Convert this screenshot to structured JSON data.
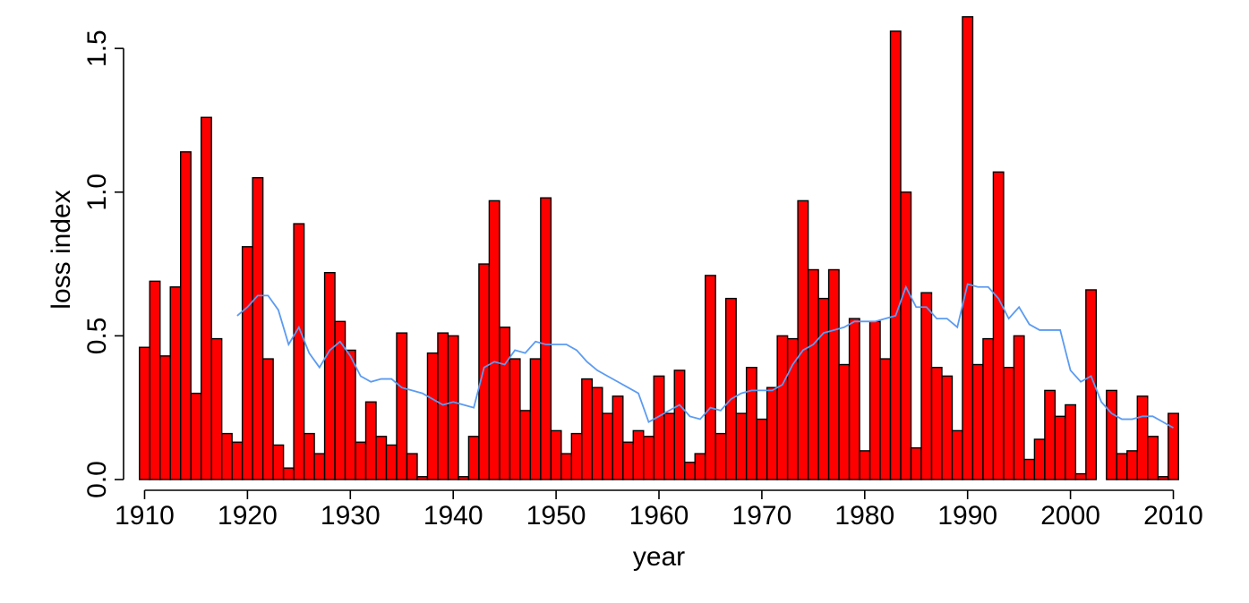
{
  "chart_data": {
    "type": "bar",
    "title": "",
    "xlabel": "year",
    "ylabel": "loss index",
    "xlim": [
      1909,
      2011
    ],
    "ylim": [
      0,
      1.6
    ],
    "x_ticks": [
      1910,
      1920,
      1930,
      1940,
      1950,
      1960,
      1970,
      1980,
      1990,
      2000,
      2010
    ],
    "y_ticks": [
      "0.0",
      "0.5",
      "1.0",
      "1.5"
    ],
    "grid": false,
    "colors": {
      "bars": "#ff0000",
      "bar_outline": "#000000",
      "line": "#5b9bf2"
    },
    "series": [
      {
        "type": "bar",
        "x": [
          1910,
          1911,
          1912,
          1913,
          1914,
          1915,
          1916,
          1917,
          1918,
          1919,
          1920,
          1921,
          1922,
          1923,
          1924,
          1925,
          1926,
          1927,
          1928,
          1929,
          1930,
          1931,
          1932,
          1933,
          1934,
          1935,
          1936,
          1937,
          1938,
          1939,
          1940,
          1941,
          1942,
          1943,
          1944,
          1945,
          1946,
          1947,
          1948,
          1949,
          1950,
          1951,
          1952,
          1953,
          1954,
          1955,
          1956,
          1957,
          1958,
          1959,
          1960,
          1961,
          1962,
          1963,
          1964,
          1965,
          1966,
          1967,
          1968,
          1969,
          1970,
          1971,
          1972,
          1973,
          1974,
          1975,
          1976,
          1977,
          1978,
          1979,
          1980,
          1981,
          1982,
          1983,
          1984,
          1985,
          1986,
          1987,
          1988,
          1989,
          1990,
          1991,
          1992,
          1993,
          1994,
          1995,
          1996,
          1997,
          1998,
          1999,
          2000,
          2001,
          2002,
          2003,
          2004,
          2005,
          2006,
          2007,
          2008,
          2009,
          2010
        ],
        "values": [
          0.46,
          0.69,
          0.43,
          0.67,
          1.14,
          0.3,
          1.26,
          0.49,
          0.16,
          0.13,
          0.81,
          1.05,
          0.42,
          0.12,
          0.04,
          0.89,
          0.16,
          0.09,
          0.72,
          0.55,
          0.45,
          0.13,
          0.27,
          0.15,
          0.12,
          0.51,
          0.09,
          0.01,
          0.44,
          0.51,
          0.5,
          0.01,
          0.15,
          0.75,
          0.97,
          0.53,
          0.42,
          0.24,
          0.42,
          0.98,
          0.17,
          0.09,
          0.16,
          0.35,
          0.32,
          0.23,
          0.29,
          0.13,
          0.17,
          0.15,
          0.36,
          0.23,
          0.38,
          0.06,
          0.09,
          0.71,
          0.16,
          0.63,
          0.23,
          0.39,
          0.21,
          0.32,
          0.5,
          0.49,
          0.97,
          0.73,
          0.63,
          0.73,
          0.4,
          0.56,
          0.1,
          0.55,
          0.42,
          1.56,
          1.0,
          0.11,
          0.65,
          0.39,
          0.36,
          0.17,
          1.61,
          0.4,
          0.49,
          1.07,
          0.39,
          0.5,
          0.07,
          0.14,
          0.31,
          0.22,
          0.26,
          0.02,
          0.66,
          0.0,
          0.31,
          0.09,
          0.1,
          0.29,
          0.15,
          0.01,
          0.23
        ]
      },
      {
        "type": "line",
        "x": [
          1919,
          1920,
          1921,
          1922,
          1923,
          1924,
          1925,
          1926,
          1927,
          1928,
          1929,
          1930,
          1931,
          1932,
          1933,
          1934,
          1935,
          1936,
          1937,
          1938,
          1939,
          1940,
          1941,
          1942,
          1943,
          1944,
          1945,
          1946,
          1947,
          1948,
          1949,
          1950,
          1951,
          1952,
          1953,
          1954,
          1955,
          1956,
          1957,
          1958,
          1959,
          1960,
          1961,
          1962,
          1963,
          1964,
          1965,
          1966,
          1967,
          1968,
          1969,
          1970,
          1971,
          1972,
          1973,
          1974,
          1975,
          1976,
          1977,
          1978,
          1979,
          1980,
          1981,
          1982,
          1983,
          1984,
          1985,
          1986,
          1987,
          1988,
          1989,
          1990,
          1991,
          1992,
          1993,
          1994,
          1995,
          1996,
          1997,
          1998,
          1999,
          2000,
          2001,
          2002,
          2003,
          2004,
          2005,
          2006,
          2007,
          2008,
          2009,
          2010
        ],
        "values": [
          0.57,
          0.6,
          0.64,
          0.64,
          0.59,
          0.47,
          0.53,
          0.44,
          0.39,
          0.45,
          0.48,
          0.43,
          0.36,
          0.34,
          0.35,
          0.35,
          0.32,
          0.31,
          0.3,
          0.28,
          0.26,
          0.27,
          0.26,
          0.25,
          0.39,
          0.41,
          0.4,
          0.45,
          0.44,
          0.48,
          0.47,
          0.47,
          0.47,
          0.45,
          0.41,
          0.38,
          0.36,
          0.34,
          0.32,
          0.3,
          0.2,
          0.22,
          0.24,
          0.26,
          0.22,
          0.21,
          0.25,
          0.24,
          0.28,
          0.3,
          0.31,
          0.31,
          0.31,
          0.33,
          0.4,
          0.45,
          0.47,
          0.51,
          0.52,
          0.53,
          0.55,
          0.55,
          0.55,
          0.56,
          0.57,
          0.67,
          0.6,
          0.6,
          0.56,
          0.56,
          0.53,
          0.68,
          0.67,
          0.67,
          0.63,
          0.56,
          0.6,
          0.54,
          0.52,
          0.52,
          0.52,
          0.38,
          0.34,
          0.36,
          0.27,
          0.23,
          0.21,
          0.21,
          0.22,
          0.22,
          0.2,
          0.18
        ]
      }
    ]
  }
}
